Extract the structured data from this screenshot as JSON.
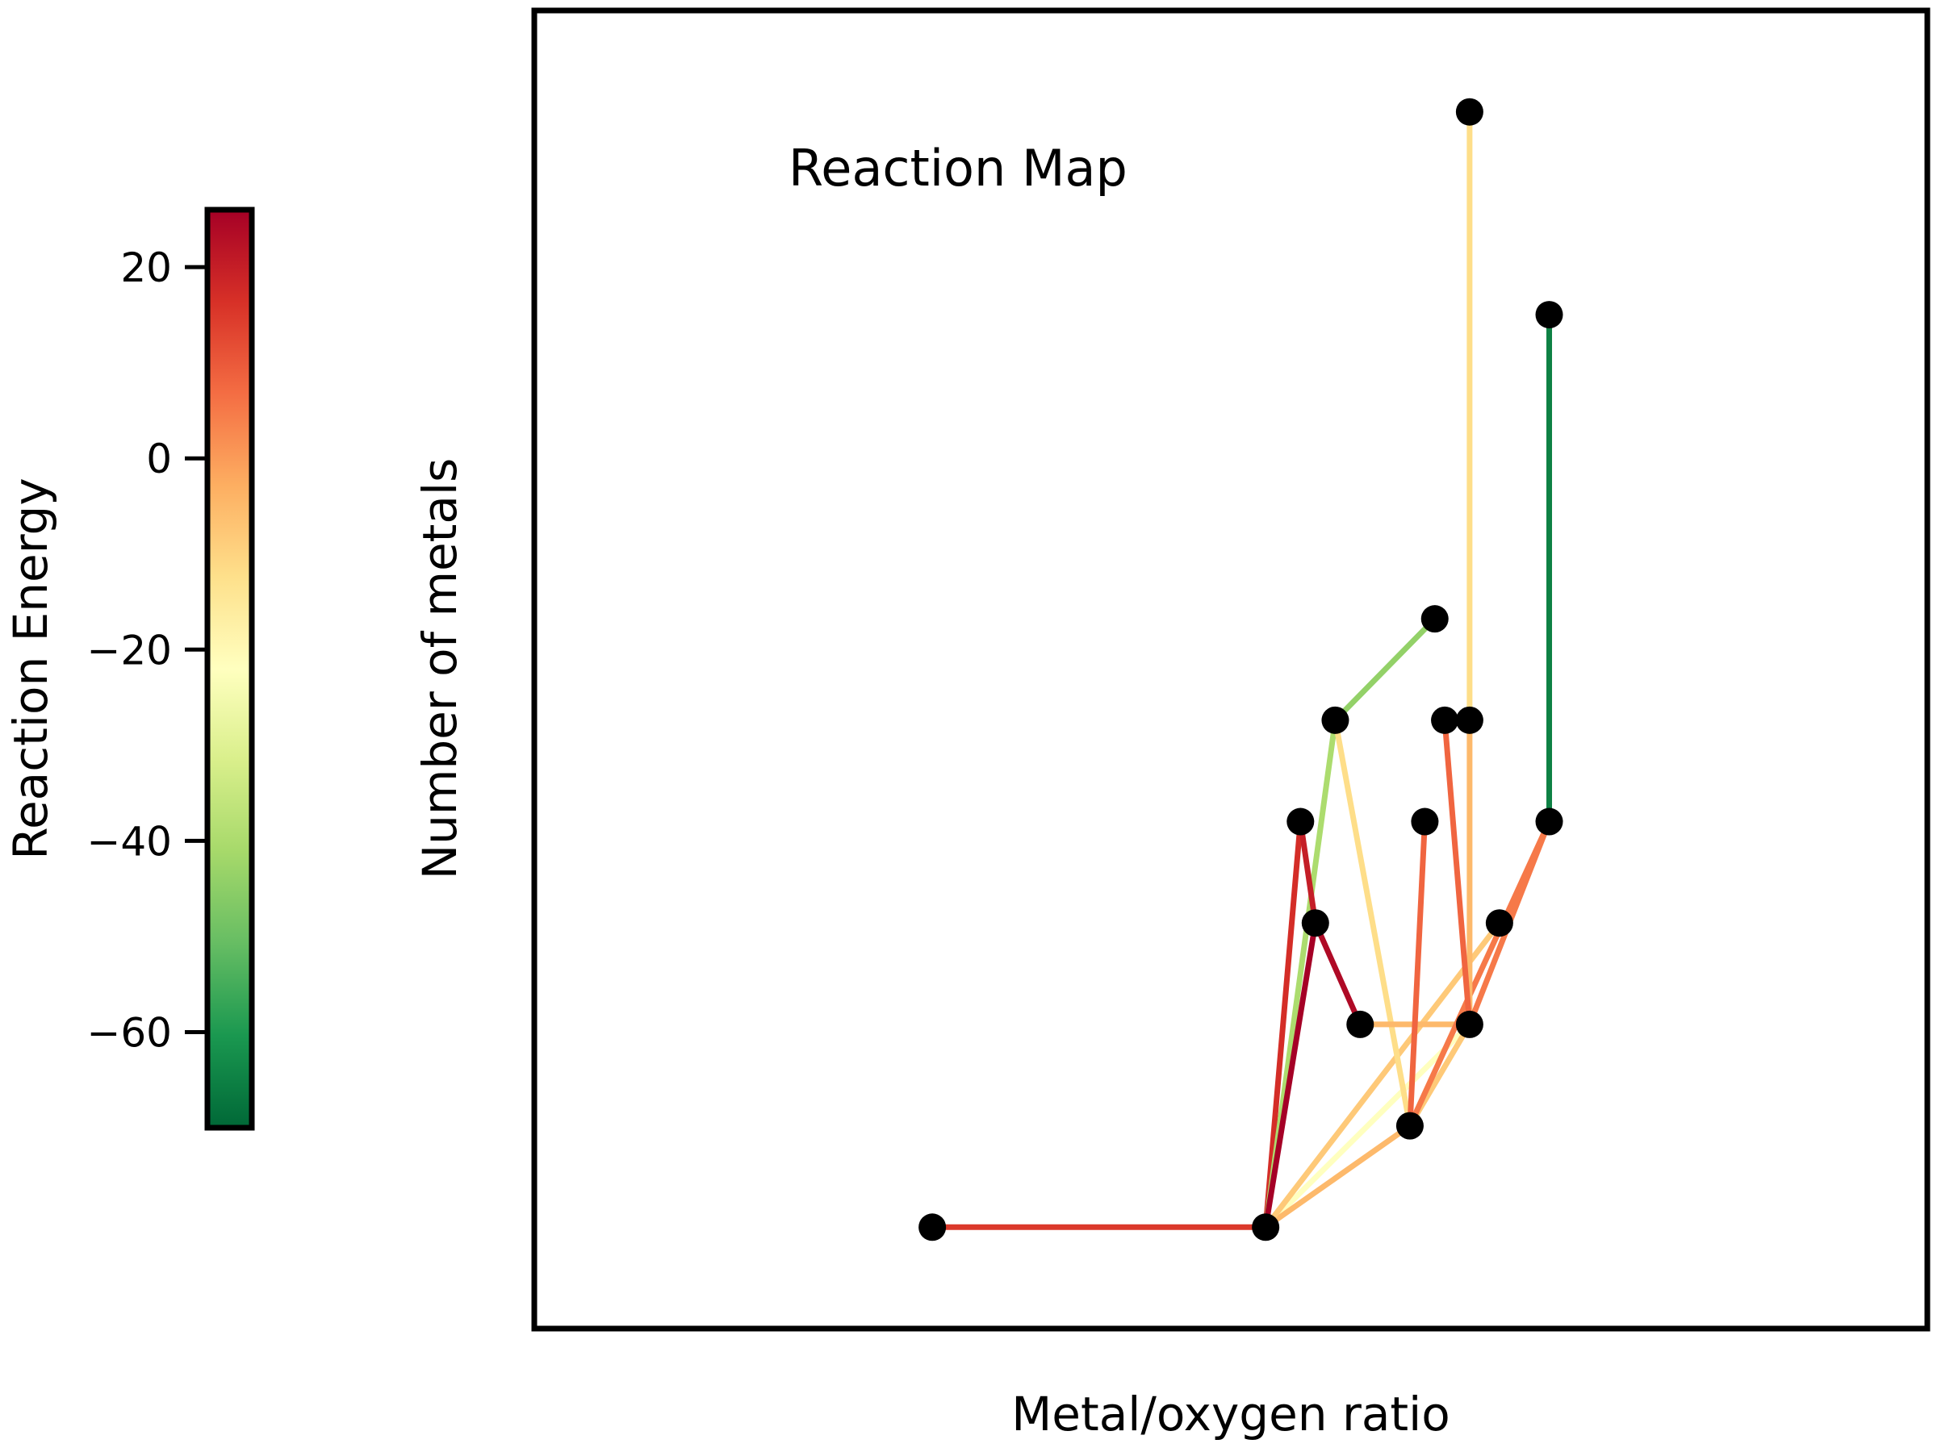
{
  "chart_data": {
    "type": "scatter",
    "title": "Reaction Map",
    "xlabel": "Metal/oxygen ratio",
    "ylabel": "Number of metals",
    "xlim": [
      0.8,
      3.6
    ],
    "ylim": [
      0.0,
      13.0
    ],
    "xticks_visible": false,
    "yticks_visible": false,
    "grid": false,
    "nodes": [
      {
        "id": "n1",
        "x": 1.6,
        "y": 1
      },
      {
        "id": "n2",
        "x": 2.27,
        "y": 1
      },
      {
        "id": "n3",
        "x": 2.46,
        "y": 3
      },
      {
        "id": "n4",
        "x": 2.68,
        "y": 3
      },
      {
        "id": "n5",
        "x": 2.37,
        "y": 4
      },
      {
        "id": "n6",
        "x": 2.74,
        "y": 4
      },
      {
        "id": "n7",
        "x": 2.34,
        "y": 5
      },
      {
        "id": "n8",
        "x": 2.59,
        "y": 5
      },
      {
        "id": "n9",
        "x": 2.84,
        "y": 5
      },
      {
        "id": "n10",
        "x": 2.41,
        "y": 6
      },
      {
        "id": "n11",
        "x": 2.63,
        "y": 6
      },
      {
        "id": "n12",
        "x": 2.68,
        "y": 6
      },
      {
        "id": "n13",
        "x": 2.56,
        "y": 2
      },
      {
        "id": "n14",
        "x": 2.61,
        "y": 7
      },
      {
        "id": "n15",
        "x": 2.68,
        "y": 12
      },
      {
        "id": "n16",
        "x": 2.84,
        "y": 10
      }
    ],
    "edges": [
      {
        "from": "n1",
        "to": "n2",
        "energy": 15
      },
      {
        "from": "n2",
        "to": "n7",
        "energy": 17
      },
      {
        "from": "n2",
        "to": "n10",
        "energy": -40
      },
      {
        "from": "n2",
        "to": "n5",
        "energy": 26
      },
      {
        "from": "n2",
        "to": "n4",
        "energy": -22
      },
      {
        "from": "n2",
        "to": "n13",
        "energy": -5
      },
      {
        "from": "n2",
        "to": "n6",
        "energy": -8
      },
      {
        "from": "n7",
        "to": "n5",
        "energy": 20
      },
      {
        "from": "n5",
        "to": "n3",
        "energy": 24
      },
      {
        "from": "n10",
        "to": "n14",
        "energy": -44
      },
      {
        "from": "n10",
        "to": "n13",
        "energy": -12
      },
      {
        "from": "n3",
        "to": "n4",
        "energy": -5
      },
      {
        "from": "n13",
        "to": "n8",
        "energy": 8
      },
      {
        "from": "n13",
        "to": "n4",
        "energy": -8
      },
      {
        "from": "n13",
        "to": "n9",
        "energy": 5
      },
      {
        "from": "n4",
        "to": "n12",
        "energy": -5
      },
      {
        "from": "n4",
        "to": "n11",
        "energy": 8
      },
      {
        "from": "n4",
        "to": "n9",
        "energy": 5
      },
      {
        "from": "n12",
        "to": "n15",
        "energy": -12
      },
      {
        "from": "n9",
        "to": "n16",
        "energy": -65
      }
    ],
    "colorbar": {
      "label": "Reaction Energy",
      "range": [
        -70,
        26
      ],
      "ticks": [
        20,
        0,
        -20,
        -40,
        -60
      ],
      "tick_labels": [
        "20",
        "0",
        "−20",
        "−40",
        "−60"
      ],
      "colormap": "RdYlGn_r",
      "stops": [
        "#006837",
        "#1a9850",
        "#66bd63",
        "#a6d96a",
        "#d9ef8b",
        "#ffffbf",
        "#fee08b",
        "#fdae61",
        "#f46d43",
        "#d73027",
        "#a50026"
      ]
    },
    "node_color": "#000000"
  }
}
